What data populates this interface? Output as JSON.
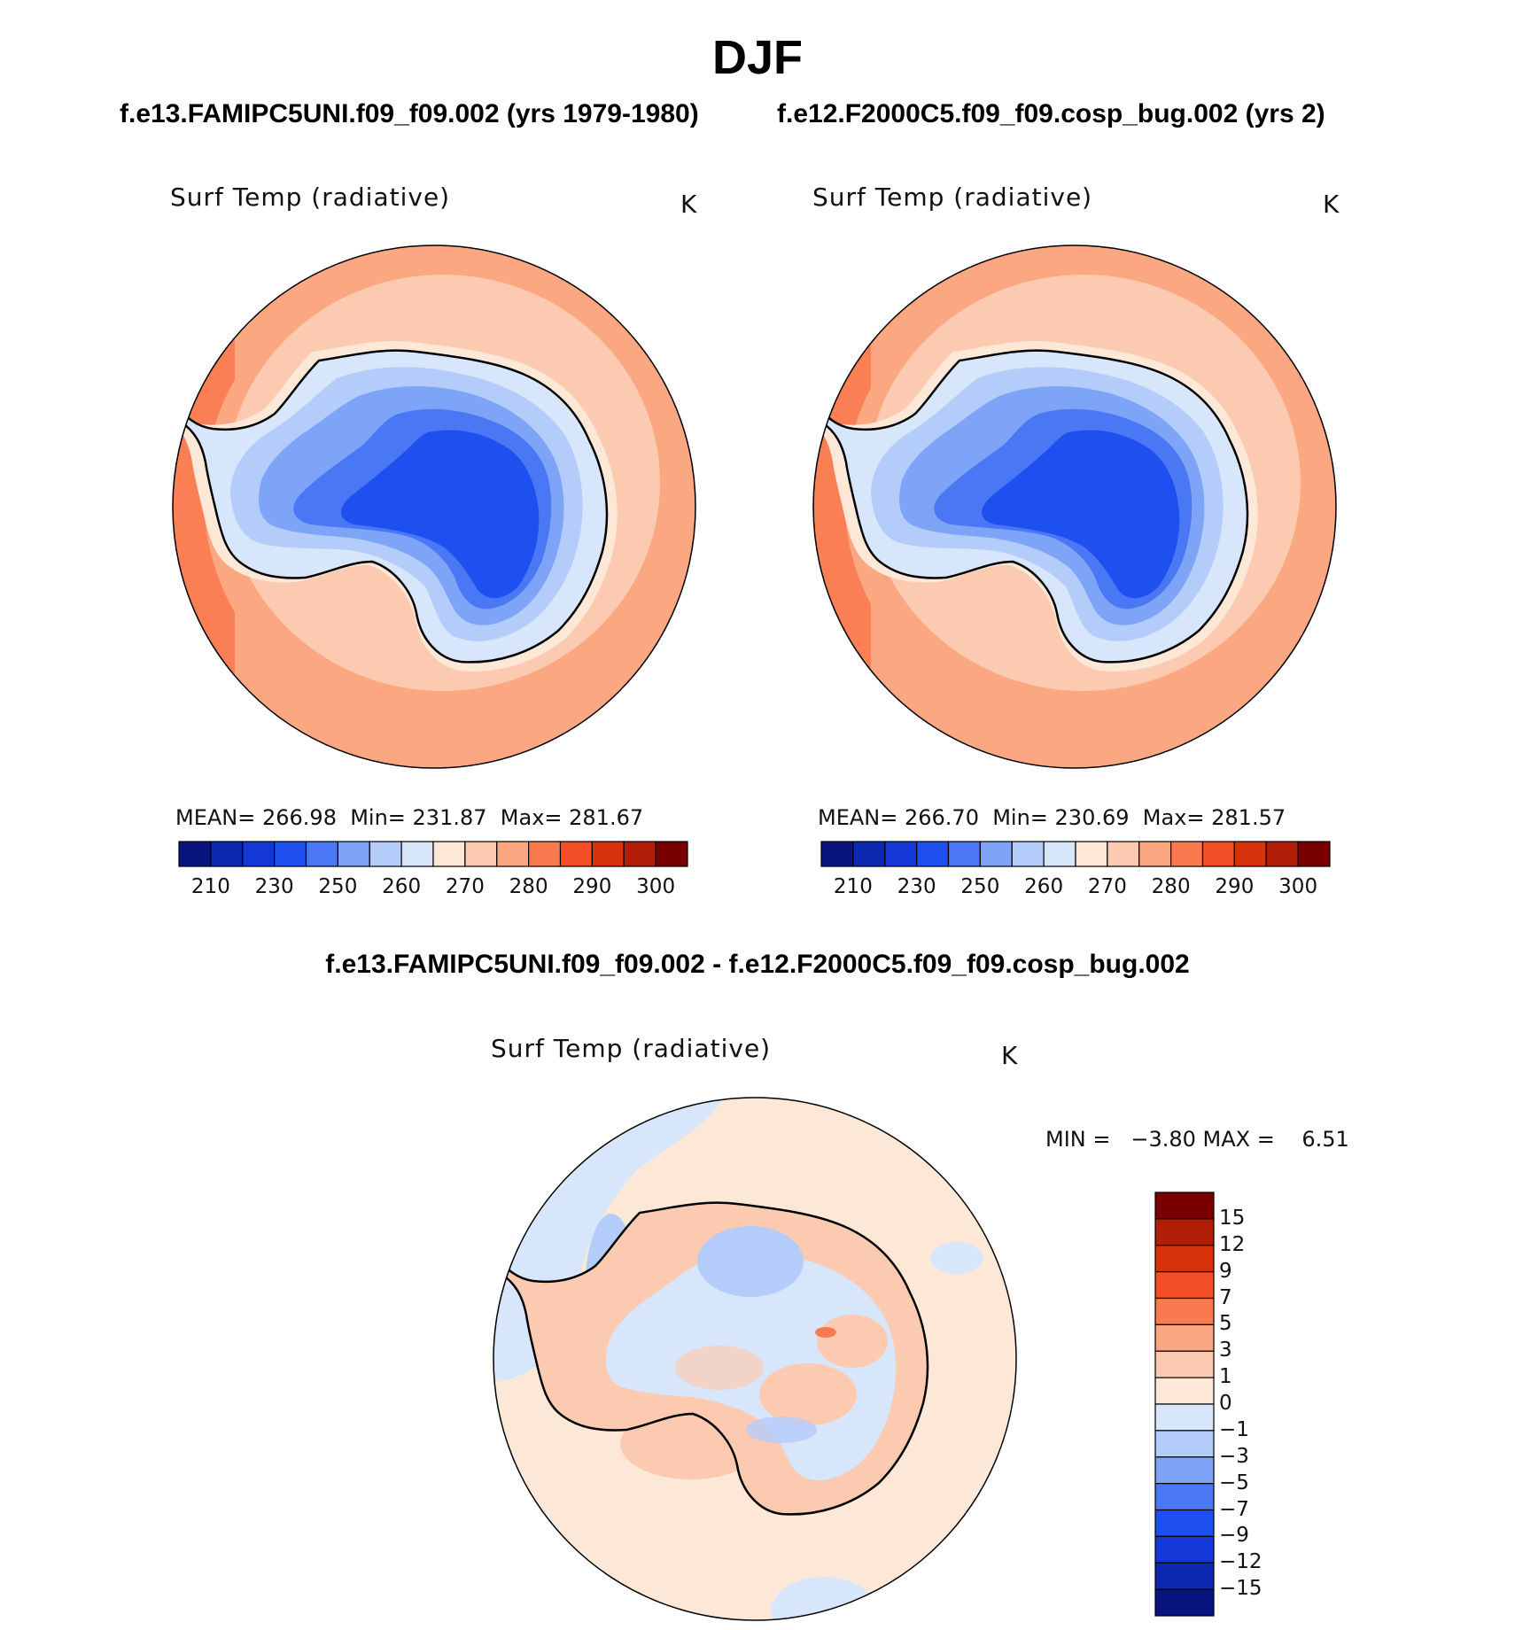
{
  "title": "DJF",
  "case1_title": "f.e13.FAMIPC5UNI.f09_f09.002 (yrs 1979-1980)",
  "case2_title": "f.e12.F2000C5.f09_f09.cosp_bug.002 (yrs 2)",
  "diff_title": "f.e13.FAMIPC5UNI.f09_f09.002 - f.e12.F2000C5.f09_f09.cosp_bug.002",
  "panels": [
    {
      "variable": "Surf Temp (radiative)",
      "units": "K",
      "stats": "MEAN= 266.98  Min= 231.87  Max= 281.67",
      "mean": 266.98,
      "min": 231.87,
      "max": 281.67
    },
    {
      "variable": "Surf Temp (radiative)",
      "units": "K",
      "stats": "MEAN= 266.70  Min= 230.69  Max= 281.57",
      "mean": 266.7,
      "min": 230.69,
      "max": 281.57
    }
  ],
  "diff_panel": {
    "variable": "Surf Temp (radiative)",
    "units": "K",
    "stats": "MIN =   −3.80 MAX =    6.51",
    "min": -3.8,
    "max": 6.51
  },
  "colorbar_abs": {
    "colors": [
      "#0a1480",
      "#0c28b0",
      "#1438d8",
      "#1e50f0",
      "#4a78f5",
      "#7ea4f8",
      "#b4ccfa",
      "#d8e6fc",
      "#fde8d8",
      "#fccab0",
      "#fba882",
      "#fa7a50",
      "#f44e26",
      "#d8320c",
      "#b01e08",
      "#7a0000"
    ],
    "tick_labels": [
      "210",
      "230",
      "250",
      "260",
      "270",
      "280",
      "290",
      "300"
    ]
  },
  "colorbar_diff": {
    "colors": [
      "#7a0000",
      "#b01e08",
      "#d8320c",
      "#f44e26",
      "#fa7a50",
      "#fba882",
      "#fccab0",
      "#fde8d8",
      "#d8e6fc",
      "#b4ccfa",
      "#7ea4f8",
      "#4a78f5",
      "#1e50f0",
      "#1438d8",
      "#0c28b0",
      "#0a1480"
    ],
    "tick_labels": [
      "15",
      "12",
      "9",
      "7",
      "5",
      "3",
      "1",
      "0",
      "−1",
      "−3",
      "−5",
      "−7",
      "−9",
      "−12",
      "−15"
    ]
  }
}
